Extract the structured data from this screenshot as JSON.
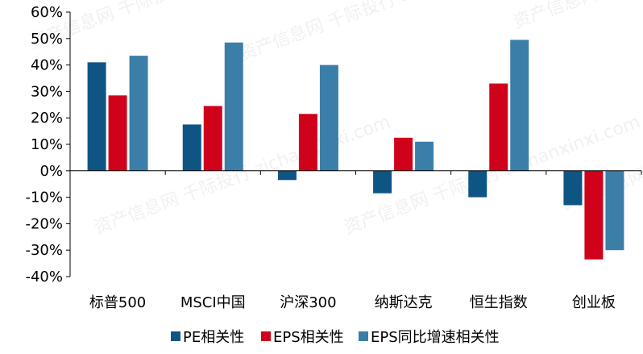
{
  "chart_data": {
    "type": "bar",
    "categories": [
      "标普500",
      "MSCI中国",
      "沪深300",
      "纳斯达克",
      "恒生指数",
      "创业板"
    ],
    "series": [
      {
        "name": "PE相关性",
        "color": "#0f5584",
        "values": [
          41,
          17.5,
          -3.5,
          -8.5,
          -10,
          -13
        ]
      },
      {
        "name": "EPS相关性",
        "color": "#d0021b",
        "values": [
          28.5,
          24.5,
          21.5,
          12.5,
          33,
          -33.5
        ]
      },
      {
        "name": "EPS同比增速相关性",
        "color": "#3b7ea8",
        "values": [
          43.5,
          48.5,
          40,
          11,
          49.5,
          -30
        ]
      }
    ],
    "ylim": [
      -40,
      60
    ],
    "yticks": [
      {
        "value": 60,
        "label": "60%"
      },
      {
        "value": 50,
        "label": "50%"
      },
      {
        "value": 40,
        "label": "40%"
      },
      {
        "value": 30,
        "label": "30%"
      },
      {
        "value": 20,
        "label": "20%"
      },
      {
        "value": 10,
        "label": "10%"
      },
      {
        "value": 0,
        "label": "0%"
      },
      {
        "value": -10,
        "label": "-10%"
      },
      {
        "value": -20,
        "label": "-20%"
      },
      {
        "value": -30,
        "label": "-30%"
      },
      {
        "value": -40,
        "label": "-40%"
      }
    ],
    "legend_position": "bottom",
    "grid": false,
    "watermark": "资产信息网 千际投行 zichanxinxi.com"
  }
}
